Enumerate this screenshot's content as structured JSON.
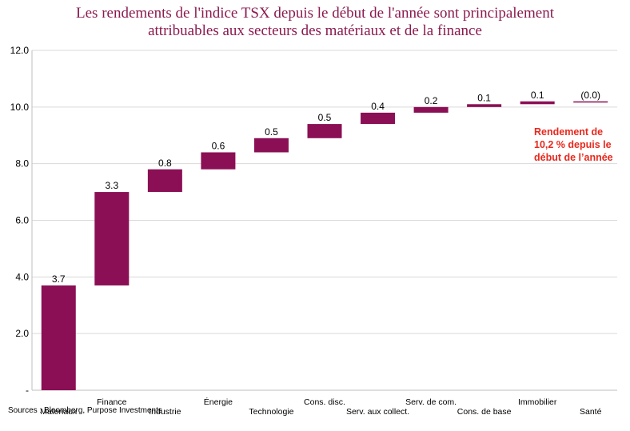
{
  "chart_data": {
    "type": "bar",
    "subtype": "waterfall",
    "title_lines": [
      "Les rendements de l'indice TSX depuis le début de l'année sont principalement",
      "attribuables aux secteurs des matériaux et de la finance"
    ],
    "categories": [
      "Matériaux",
      "Finance",
      "Industrie",
      "Énergie",
      "Technologie",
      "Cons. disc.",
      "Serv. aux collect.",
      "Serv. de com.",
      "Cons. de base",
      "Immobilier",
      "Santé"
    ],
    "values": [
      3.7,
      3.3,
      0.8,
      0.6,
      0.5,
      0.5,
      0.4,
      0.2,
      0.1,
      0.1,
      0.0
    ],
    "value_labels": [
      "3.7",
      "3.3",
      "0.8",
      "0.6",
      "0.5",
      "0.5",
      "0.4",
      "0.2",
      "0.1",
      "0.1",
      "(0.0)"
    ],
    "ylim": [
      0,
      12
    ],
    "yticks": [
      0,
      2,
      4,
      6,
      8,
      10,
      12
    ],
    "ytick_labels": [
      "-",
      "2.0",
      "4.0",
      "6.0",
      "8.0",
      "10.0",
      "12.0"
    ],
    "grid": true,
    "bar_color": "#8b0f55",
    "title_color": "#8b1a4f",
    "annotation": {
      "lines": [
        "Rendement de",
        "10,2 % depuis le",
        "début de l’année"
      ],
      "color": "#e8281e"
    },
    "source": "Sources : Bloomberg, Purpose Investments"
  }
}
